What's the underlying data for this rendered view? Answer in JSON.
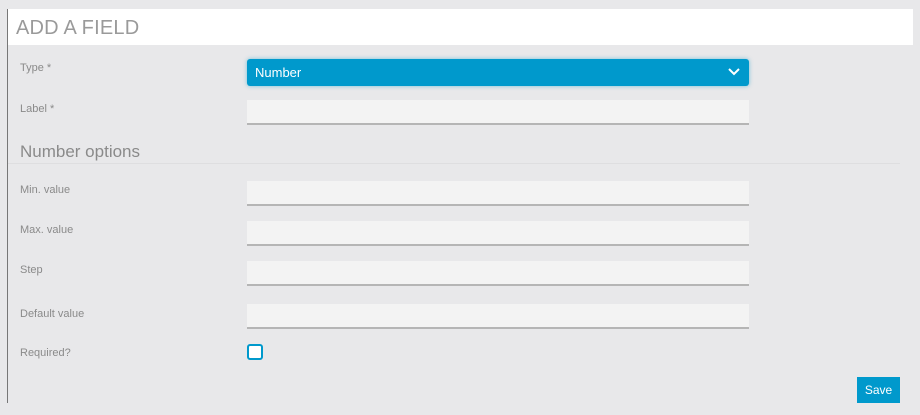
{
  "header": {
    "title": "ADD A FIELD"
  },
  "form": {
    "type": {
      "label": "Type *",
      "value": "Number"
    },
    "label_field": {
      "label": "Label *",
      "value": ""
    },
    "section_title": "Number options",
    "min": {
      "label": "Min. value",
      "value": ""
    },
    "max": {
      "label": "Max. value",
      "value": ""
    },
    "step": {
      "label": "Step",
      "value": ""
    },
    "default": {
      "label": "Default value",
      "value": ""
    },
    "required": {
      "label": "Required?",
      "checked": false
    }
  },
  "actions": {
    "save_label": "Save"
  },
  "colors": {
    "accent": "#0099cc",
    "background": "#e8e8ea"
  },
  "icons": {
    "select": "chevron-down-icon"
  }
}
